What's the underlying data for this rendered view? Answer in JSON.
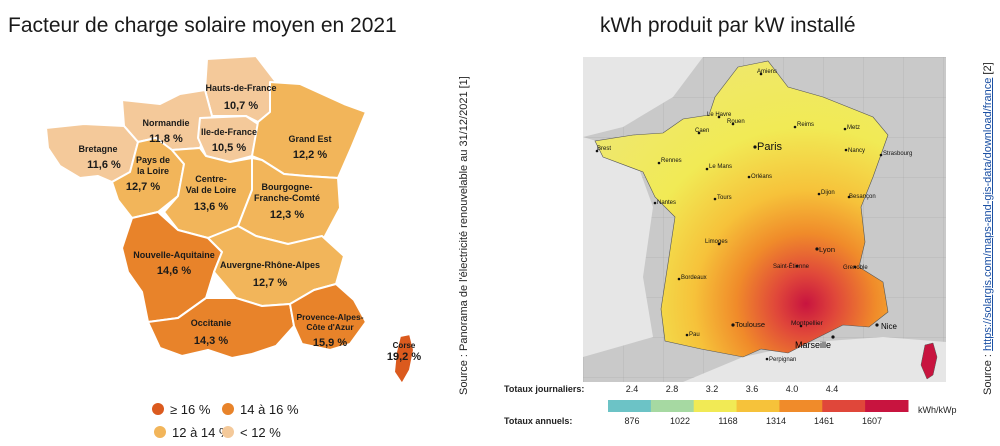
{
  "left": {
    "title": "Facteur de charge solaire moyen en 2021",
    "regions": [
      {
        "name": "Hauts-de-France",
        "value": "10,7 %",
        "color": "#f4c99a"
      },
      {
        "name": "Normandie",
        "value": "11,8 %",
        "color": "#f4c99a"
      },
      {
        "name": "Bretagne",
        "value": "11,6 %",
        "color": "#f4c99a"
      },
      {
        "name": "Ile-de-France",
        "value": "10,5 %",
        "color": "#f4c99a"
      },
      {
        "name": "Grand Est",
        "value": "12,2 %",
        "color": "#f2b55a"
      },
      {
        "name": "Pays de la Loire",
        "value": "12,7 %",
        "color": "#f2b55a"
      },
      {
        "name": "Centre-Val de Loire",
        "value": "13,6 %",
        "color": "#f2b55a"
      },
      {
        "name": "Bourgogne-Franche-Comté",
        "value": "12,3 %",
        "color": "#f2b55a"
      },
      {
        "name": "Nouvelle-Aquitaine",
        "value": "14,6 %",
        "color": "#e8832a"
      },
      {
        "name": "Auvergne-Rhône-Alpes",
        "value": "12,7 %",
        "color": "#f2b55a"
      },
      {
        "name": "Occitanie",
        "value": "14,3 %",
        "color": "#e8832a"
      },
      {
        "name": "Provence-Alpes-Côte d'Azur",
        "value": "15,9 %",
        "color": "#e8832a"
      },
      {
        "name": "Corse",
        "value": "19,2 %",
        "color": "#db5a1e"
      }
    ],
    "legend": [
      {
        "label": "≥ 16 %",
        "color": "#db5a1e"
      },
      {
        "label": "14 à 16 %",
        "color": "#e8832a"
      },
      {
        "label": "12 à 14 %",
        "color": "#f2b55a"
      },
      {
        "label": "< 12 %",
        "color": "#f4c99a"
      }
    ],
    "source": "Source : Panorama de l'électricité renouvelable au 31/12/2021 [1]"
  },
  "right": {
    "title": "kWh produit par kW installé",
    "cities": [
      "Amiens",
      "Le Havre",
      "Rouen",
      "Caen",
      "Reims",
      "Metz",
      "Paris",
      "Nancy",
      "Strasbourg",
      "Brest",
      "Rennes",
      "Le Mans",
      "Orléans",
      "Nantes",
      "Tours",
      "Dijon",
      "Besançon",
      "Limoges",
      "Lyon",
      "Saint-Étienne",
      "Grenoble",
      "Bordeaux",
      "Toulouse",
      "Montpellier",
      "Nice",
      "Pau",
      "Marseille",
      "Perpignan"
    ],
    "scale": {
      "daily_label": "Totaux journaliers:",
      "daily_values": [
        "2.4",
        "2.8",
        "3.2",
        "3.6",
        "4.0",
        "4.4"
      ],
      "annual_label": "Totaux annuels:",
      "annual_values": [
        "876",
        "1022",
        "1168",
        "1314",
        "1461",
        "1607"
      ],
      "unit": "kWh/kWp",
      "colors": [
        "#6cc3c6",
        "#a6d9a2",
        "#f1ea55",
        "#f6c23a",
        "#f08b2a",
        "#e0473a",
        "#c8143f"
      ]
    },
    "source_prefix": "Source : ",
    "source_link": "https://solargis.com/maps-and-gis-data/download/france",
    "source_suffix": " [2]"
  }
}
